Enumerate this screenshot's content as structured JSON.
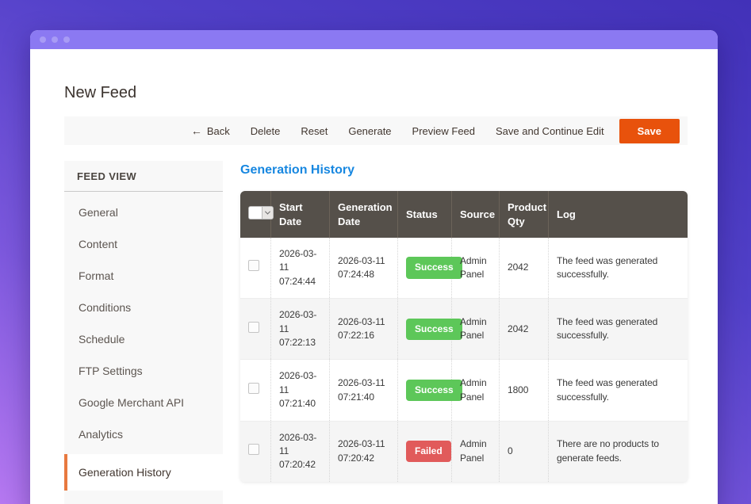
{
  "page": {
    "title": "New Feed"
  },
  "toolbar": {
    "back_arrow": "←",
    "back_label": "Back",
    "buttons": [
      "Delete",
      "Reset",
      "Generate",
      "Preview Feed",
      "Save and Continue Edit"
    ],
    "save_label": "Save"
  },
  "sidebar": {
    "header": "FEED VIEW",
    "items": [
      {
        "label": "General"
      },
      {
        "label": "Content"
      },
      {
        "label": "Format"
      },
      {
        "label": "Conditions"
      },
      {
        "label": "Schedule"
      },
      {
        "label": "FTP Settings"
      },
      {
        "label": "Google Merchant API"
      },
      {
        "label": "Analytics"
      },
      {
        "label": "Generation History"
      }
    ],
    "active_item": "Generation History"
  },
  "main": {
    "section_title": "Generation History",
    "table": {
      "columns": [
        "",
        "Start Date",
        "Generation Date",
        "Status",
        "Source",
        "Product Qty",
        "Log"
      ],
      "rows": [
        {
          "start_date": "2026-03-11 07:24:44",
          "generation_date": "2026-03-11 07:24:48",
          "status": "Success",
          "source": "Admin Panel",
          "product_qty": "2042",
          "log": "The feed was generated successfully."
        },
        {
          "start_date": "2026-03-11 07:22:13",
          "generation_date": "2026-03-11 07:22:16",
          "status": "Success",
          "source": "Admin Panel",
          "product_qty": "2042",
          "log": "The feed was generated successfully."
        },
        {
          "start_date": "2026-03-11 07:21:40",
          "generation_date": "2026-03-11 07:21:40",
          "status": "Success",
          "source": "Admin Panel",
          "product_qty": "1800",
          "log": "The feed was generated successfully."
        },
        {
          "start_date": "2026-03-11 07:20:42",
          "generation_date": "2026-03-11 07:20:42",
          "status": "Failed",
          "source": "Admin Panel",
          "product_qty": "0",
          "log": "There are no products to generate feeds."
        }
      ]
    }
  },
  "colors": {
    "accent_orange": "#e8520c",
    "active_tab_orange": "#e8793f",
    "section_title_blue": "#1787e0",
    "table_header_dark": "#55504a",
    "status_success": "#5dc759",
    "status_failed": "#e15b5b",
    "titlebar_purple": "#8b79f2"
  }
}
